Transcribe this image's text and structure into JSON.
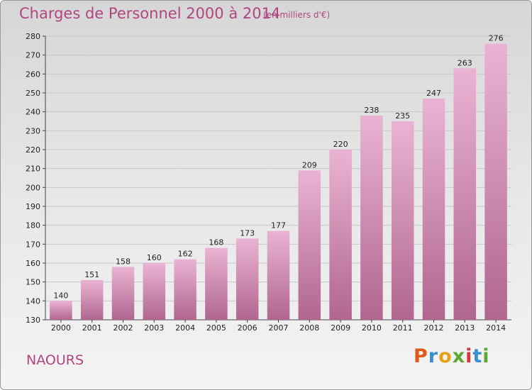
{
  "header": {
    "title": "Charges de Personnel 2000 à 2014",
    "subtitle": "(en milliers d'€)"
  },
  "footer": {
    "commune": "NAOURS",
    "logo_text": "Proxiti",
    "logo_colors": [
      "#e05a1a",
      "#3a8fd0",
      "#e3a21a",
      "#5aa832",
      "#d03a3a",
      "#3a8fd0",
      "#5aa832"
    ]
  },
  "colors": {
    "bar_light": "#eab3d3",
    "bar_dark": "#b0668f",
    "grid": "#c8c8c8",
    "title": "#b0467f"
  },
  "chart_data": {
    "type": "bar",
    "title": "Charges de Personnel 2000 à 2014",
    "subtitle": "(en milliers d'€)",
    "xlabel": "",
    "ylabel": "",
    "categories": [
      "2000",
      "2001",
      "2002",
      "2003",
      "2004",
      "2005",
      "2006",
      "2007",
      "2008",
      "2009",
      "2010",
      "2011",
      "2012",
      "2013",
      "2014"
    ],
    "values": [
      140,
      151,
      158,
      160,
      162,
      168,
      173,
      177,
      209,
      220,
      238,
      235,
      247,
      263,
      276
    ],
    "ylim": [
      130,
      280
    ],
    "yticks": [
      130,
      140,
      150,
      160,
      170,
      180,
      190,
      200,
      210,
      220,
      230,
      240,
      250,
      260,
      270,
      280
    ],
    "grid": true,
    "data_labels": true
  }
}
